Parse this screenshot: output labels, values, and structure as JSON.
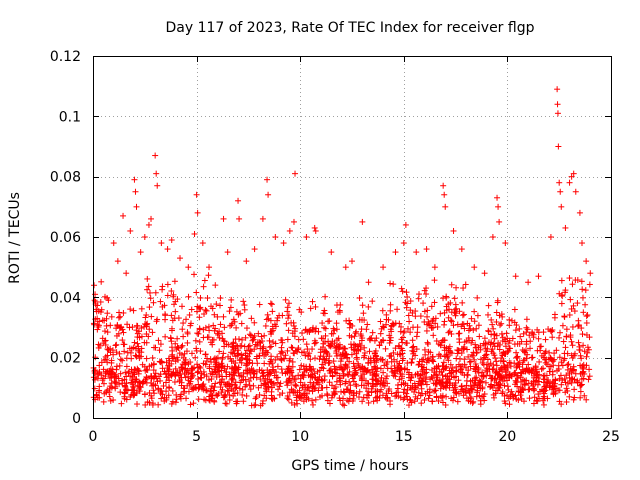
{
  "chart_data": {
    "type": "scatter",
    "title": "Day 117 of 2023, Rate Of TEC Index for receiver flgp",
    "xlabel": "GPS time / hours",
    "ylabel": "ROTI / TECUs",
    "xlim": [
      0,
      25
    ],
    "ylim": [
      0,
      0.12
    ],
    "xticks": [
      0,
      5,
      10,
      15,
      20,
      25
    ],
    "xtick_labels": [
      "0",
      "5",
      "10",
      "15",
      "20",
      "25"
    ],
    "yticks": [
      0,
      0.02,
      0.04,
      0.06,
      0.08,
      0.1,
      0.12
    ],
    "ytick_labels": [
      "0",
      "0.02",
      "0.04",
      "0.06",
      "0.08",
      "0.1",
      "0.12"
    ],
    "grid": true,
    "marker": "plus",
    "color": "#ff0000",
    "series": [
      {
        "name": "ROTI",
        "points": [
          [
            0.05,
            0.044
          ],
          [
            0.1,
            0.041
          ],
          [
            0.15,
            0.036
          ],
          [
            0.2,
            0.033
          ],
          [
            0.3,
            0.032
          ],
          [
            1.0,
            0.058
          ],
          [
            1.2,
            0.052
          ],
          [
            1.45,
            0.067
          ],
          [
            1.6,
            0.048
          ],
          [
            1.8,
            0.062
          ],
          [
            2.0,
            0.079
          ],
          [
            2.05,
            0.075
          ],
          [
            2.1,
            0.07
          ],
          [
            2.3,
            0.055
          ],
          [
            2.5,
            0.06
          ],
          [
            2.7,
            0.064
          ],
          [
            2.8,
            0.066
          ],
          [
            3.0,
            0.087
          ],
          [
            3.05,
            0.081
          ],
          [
            3.1,
            0.077
          ],
          [
            3.3,
            0.058
          ],
          [
            3.6,
            0.056
          ],
          [
            3.8,
            0.059
          ],
          [
            4.2,
            0.053
          ],
          [
            4.6,
            0.05
          ],
          [
            4.9,
            0.061
          ],
          [
            5.0,
            0.074
          ],
          [
            5.05,
            0.068
          ],
          [
            5.3,
            0.058
          ],
          [
            5.6,
            0.05
          ],
          [
            6.3,
            0.066
          ],
          [
            6.5,
            0.055
          ],
          [
            7.0,
            0.072
          ],
          [
            7.05,
            0.066
          ],
          [
            7.4,
            0.052
          ],
          [
            7.8,
            0.056
          ],
          [
            8.2,
            0.066
          ],
          [
            8.4,
            0.079
          ],
          [
            8.45,
            0.074
          ],
          [
            8.8,
            0.06
          ],
          [
            9.2,
            0.058
          ],
          [
            9.5,
            0.062
          ],
          [
            9.7,
            0.065
          ],
          [
            9.75,
            0.081
          ],
          [
            10.3,
            0.06
          ],
          [
            10.7,
            0.063
          ],
          [
            10.75,
            0.062
          ],
          [
            11.5,
            0.055
          ],
          [
            12.2,
            0.05
          ],
          [
            12.5,
            0.052
          ],
          [
            13.0,
            0.065
          ],
          [
            13.3,
            0.045
          ],
          [
            14.0,
            0.05
          ],
          [
            14.6,
            0.055
          ],
          [
            15.0,
            0.058
          ],
          [
            15.1,
            0.064
          ],
          [
            15.6,
            0.055
          ],
          [
            16.1,
            0.056
          ],
          [
            16.5,
            0.05
          ],
          [
            16.9,
            0.077
          ],
          [
            16.95,
            0.074
          ],
          [
            17.0,
            0.07
          ],
          [
            17.4,
            0.062
          ],
          [
            17.8,
            0.056
          ],
          [
            18.4,
            0.05
          ],
          [
            18.9,
            0.048
          ],
          [
            19.3,
            0.06
          ],
          [
            19.5,
            0.073
          ],
          [
            19.55,
            0.07
          ],
          [
            19.6,
            0.065
          ],
          [
            19.9,
            0.058
          ],
          [
            20.4,
            0.047
          ],
          [
            21.0,
            0.045
          ],
          [
            21.5,
            0.047
          ],
          [
            22.1,
            0.06
          ],
          [
            22.4,
            0.109
          ],
          [
            22.42,
            0.104
          ],
          [
            22.44,
            0.101
          ],
          [
            22.46,
            0.09
          ],
          [
            22.5,
            0.078
          ],
          [
            22.55,
            0.075
          ],
          [
            22.6,
            0.07
          ],
          [
            22.8,
            0.063
          ],
          [
            23.0,
            0.078
          ],
          [
            23.1,
            0.08
          ],
          [
            23.2,
            0.081
          ],
          [
            23.3,
            0.075
          ],
          [
            23.5,
            0.068
          ],
          [
            23.6,
            0.058
          ],
          [
            23.8,
            0.052
          ],
          [
            24.0,
            0.048
          ]
        ]
      }
    ]
  }
}
